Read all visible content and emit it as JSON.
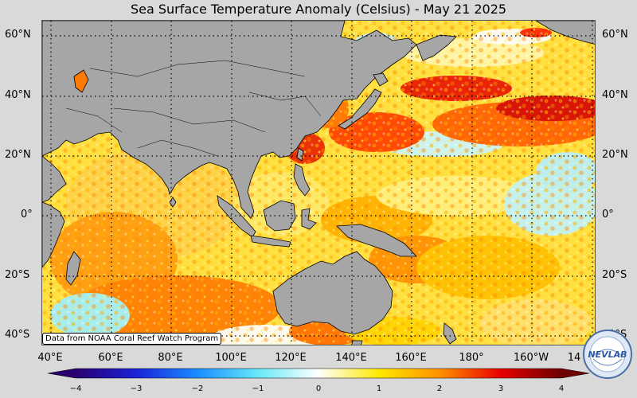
{
  "title": "Sea Surface Temperature Anomaly (Celsius) - May 21 2025",
  "attribution": "Data from NOAA Coral Reef Watch Program",
  "logo_text": "NEVLAB",
  "lat_labels": [
    "60°N",
    "40°N",
    "20°N",
    "0°",
    "20°S",
    "40°S"
  ],
  "lon_labels": [
    "40°E",
    "60°E",
    "80°E",
    "100°E",
    "120°E",
    "140°E",
    "160°E",
    "180°",
    "160°W",
    "14"
  ],
  "colorbar": {
    "ticks": [
      "−4",
      "−3",
      "−2",
      "−1",
      "0",
      "1",
      "2",
      "3",
      "4"
    ],
    "stops": [
      {
        "value": -4,
        "color": "#2a0070"
      },
      {
        "value": -3,
        "color": "#1a22d8"
      },
      {
        "value": -2,
        "color": "#1a8cff"
      },
      {
        "value": -1,
        "color": "#66e8f8"
      },
      {
        "value": 0,
        "color": "#ffffff"
      },
      {
        "value": 1,
        "color": "#ffe800"
      },
      {
        "value": 2,
        "color": "#ff9000"
      },
      {
        "value": 3,
        "color": "#e80000"
      },
      {
        "value": 4,
        "color": "#6e0000"
      }
    ]
  },
  "colors": {
    "land": "#a6a6a6",
    "background": "#d9d9d9"
  }
}
